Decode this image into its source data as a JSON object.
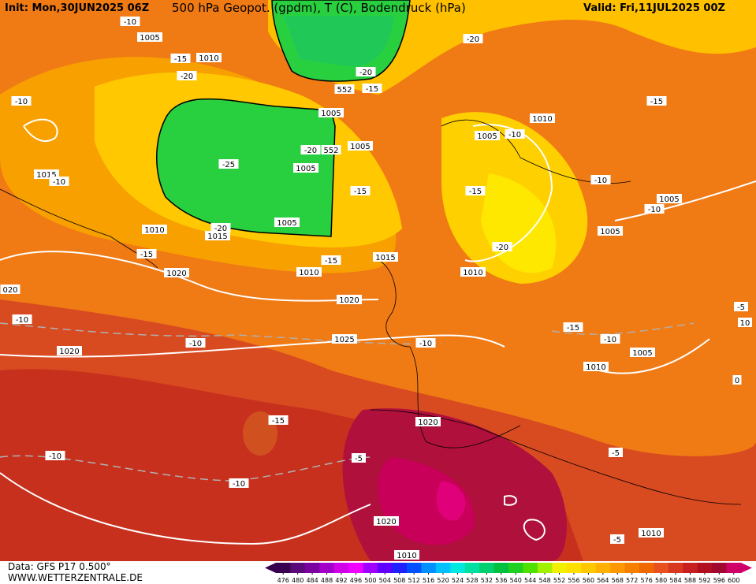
{
  "header": {
    "init": "Init: Mon,30JUN2025 06Z",
    "title": "500 hPa Geopot. (gpdm), T (C), Bodendruck (hPa)",
    "valid": "Valid: Fri,11JUL2025 00Z"
  },
  "footer": {
    "source": "Data: GFS P17 0.500°",
    "site": "WWW.WETTERZENTRALE.DE"
  },
  "map": {
    "labels": [
      "1005",
      "-10",
      "-15",
      "1010",
      "-20",
      "-10",
      "1005",
      "552",
      "-20",
      "-15",
      "1005",
      "-20",
      "552",
      "1005",
      "-25",
      "-15",
      "1005",
      "1010",
      "1015",
      "-20",
      "1015",
      "-10",
      "-15",
      "1020",
      "-15",
      "1010",
      "1015",
      "1020",
      "1025",
      "-10",
      "1020",
      "-10",
      "-15",
      "1020",
      "-10",
      "-10",
      "-5",
      "-10",
      "1020",
      "1010",
      "-20",
      "1010",
      "1005",
      "-10",
      "-15",
      "-10",
      "-15",
      "1005",
      "-10",
      "1005",
      "-20",
      "1010",
      "-15",
      "-10",
      "1005",
      "1010",
      "-5",
      "10",
      "020",
      "-5",
      "1010",
      "-5",
      "0"
    ]
  },
  "colorbar": {
    "ticks": [
      476,
      480,
      484,
      488,
      492,
      496,
      500,
      504,
      508,
      512,
      516,
      520,
      524,
      528,
      532,
      536,
      540,
      544,
      548,
      552,
      556,
      560,
      564,
      568,
      572,
      576,
      580,
      584,
      588,
      592,
      596,
      600
    ],
    "colors": [
      "#3a0050",
      "#5a0a78",
      "#7a00a0",
      "#a000c8",
      "#d000e8",
      "#f000ff",
      "#a000ff",
      "#6000ff",
      "#2020ff",
      "#0050ff",
      "#0090ff",
      "#00c0ff",
      "#00e8e0",
      "#00e0a0",
      "#00d070",
      "#00c040",
      "#20d020",
      "#50e000",
      "#a0f000",
      "#f0f000",
      "#ffe000",
      "#ffc800",
      "#ffb000",
      "#ff9800",
      "#f88000",
      "#f06800",
      "#e85020",
      "#d83820",
      "#c82020",
      "#b01020",
      "#a00830",
      "#d0006a"
    ]
  }
}
